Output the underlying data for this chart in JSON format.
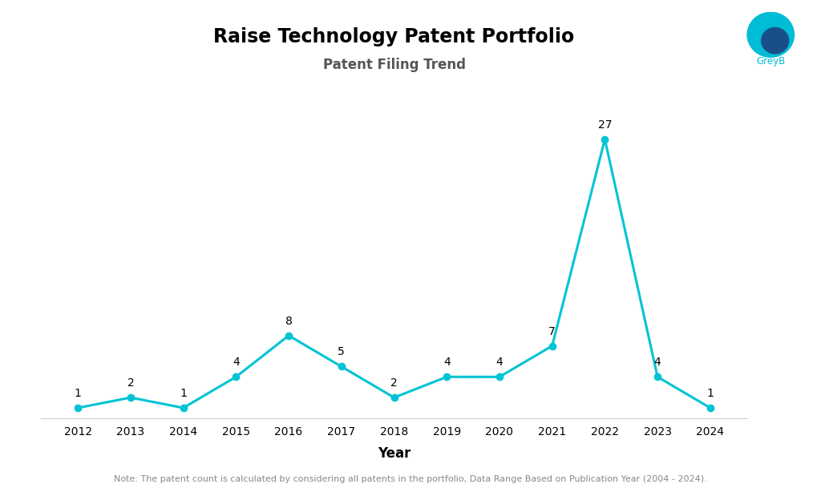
{
  "title": "Raise Technology Patent Portfolio",
  "subtitle": "Patent Filing Trend",
  "xlabel": "Year",
  "years": [
    2012,
    2013,
    2014,
    2015,
    2016,
    2017,
    2018,
    2019,
    2020,
    2021,
    2022,
    2023,
    2024
  ],
  "values": [
    1,
    2,
    1,
    4,
    8,
    5,
    2,
    4,
    4,
    7,
    27,
    4,
    1
  ],
  "line_color": "#00C4D4",
  "marker_color": "#00C4D4",
  "background_color": "#FFFFFF",
  "title_fontsize": 17,
  "subtitle_fontsize": 12,
  "label_fontsize": 10,
  "annotation_fontsize": 10,
  "xlabel_fontsize": 12,
  "note_text": "Note: The patent count is calculated by considering all patents in the portfolio, Data Range Based on Publication Year (2004 - 2024).",
  "ylim": [
    0,
    30
  ],
  "line_width": 2.2,
  "marker_size": 6,
  "logo_circle_main_color": "#00BCD4",
  "logo_circle_dark_color": "#1A4E7A",
  "logo_text_color": "#00BCD4",
  "note_color": "#888888",
  "subtitle_color": "#555555",
  "bottom_spine_color": "#CCCCCC"
}
